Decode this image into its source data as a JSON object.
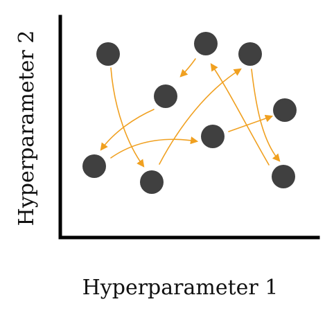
{
  "diagram": {
    "x_axis_label": "Hyperparameter 1",
    "y_axis_label": "Hyperparameter 2",
    "colors": {
      "node": "#404040",
      "arrow": "#F0A020",
      "axis": "#000000",
      "text": "#111111"
    },
    "nodes": [
      {
        "id": "n1"
      },
      {
        "id": "n2"
      },
      {
        "id": "n3"
      },
      {
        "id": "n4"
      },
      {
        "id": "n5"
      },
      {
        "id": "n6"
      },
      {
        "id": "n7"
      },
      {
        "id": "n8"
      },
      {
        "id": "n9"
      },
      {
        "id": "n10"
      }
    ],
    "arrows": [
      {
        "from": "n1",
        "to": "n9"
      },
      {
        "from": "n2",
        "to": "n4"
      },
      {
        "from": "n4",
        "to": "n8"
      },
      {
        "from": "n8",
        "to": "n6"
      },
      {
        "from": "n9",
        "to": "n3"
      },
      {
        "from": "n6",
        "to": "n7"
      },
      {
        "from": "n10",
        "to": "n2"
      },
      {
        "from": "n3",
        "to": "n10"
      }
    ]
  }
}
